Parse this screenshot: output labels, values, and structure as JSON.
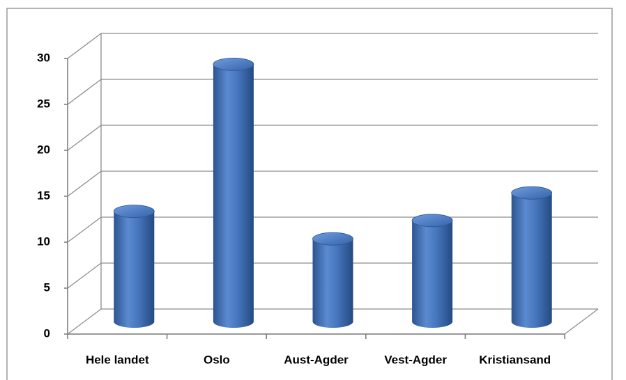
{
  "chart_data": {
    "type": "bar3d",
    "categories": [
      "Hele landet",
      "Oslo",
      "Aust-Agder",
      "Vest-Agder",
      "Kristiansand"
    ],
    "values": [
      12,
      28,
      9,
      11,
      14
    ],
    "color": "#3f6fb5",
    "ylim": [
      0,
      30
    ],
    "yticks": [
      0,
      5,
      10,
      15,
      20,
      25,
      30
    ],
    "grid": true
  }
}
